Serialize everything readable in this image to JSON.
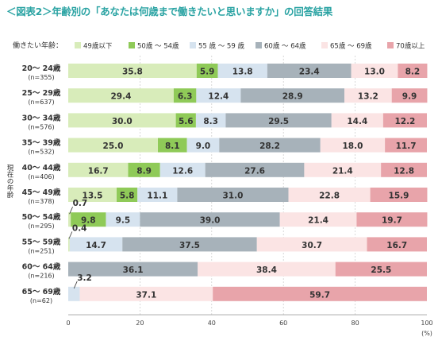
{
  "title": "＜図表2＞年齢別の「あなたは何歳まで働きたいと思いますか」の回答結果",
  "chart_data": {
    "type": "bar",
    "orientation": "horizontal",
    "stacked": true,
    "legend_title": "働きたい年齢：",
    "legend_position": "top",
    "ylabel": "現在の年齢",
    "xlabel": "(%)",
    "xlim": [
      0,
      100
    ],
    "xticks": [
      "0",
      "20",
      "40",
      "60",
      "80",
      "100"
    ],
    "grid": true,
    "categories": [
      {
        "label": "20〜 24歳",
        "n": "(n=355)"
      },
      {
        "label": "25〜 29歳",
        "n": "(n=637)"
      },
      {
        "label": "30〜 34歳",
        "n": "(n=576)"
      },
      {
        "label": "35〜 39歳",
        "n": "(n=532)"
      },
      {
        "label": "40〜 44歳",
        "n": "(n=406)"
      },
      {
        "label": "45〜 49歳",
        "n": "(n=378)"
      },
      {
        "label": "50〜 54歳",
        "n": "(n=295)"
      },
      {
        "label": "55〜 59歳",
        "n": "(n=251)"
      },
      {
        "label": "60〜 64歳",
        "n": "(n=216)"
      },
      {
        "label": "65〜 69歳",
        "n": "(n=62)"
      }
    ],
    "series": [
      {
        "name": "49歳以下",
        "color": "#d8ecba",
        "values": [
          35.8,
          29.4,
          30.0,
          25.0,
          16.7,
          13.5,
          0.7,
          0.4,
          null,
          null
        ]
      },
      {
        "name": "50歳 〜 54歳",
        "color": "#8fca58",
        "values": [
          5.9,
          6.3,
          5.6,
          8.1,
          8.9,
          5.8,
          9.8,
          null,
          null,
          null
        ]
      },
      {
        "name": "55 歳 〜 59 歳",
        "color": "#d6e3ef",
        "values": [
          13.8,
          12.4,
          8.3,
          9.0,
          12.6,
          11.1,
          9.5,
          14.7,
          null,
          3.2
        ]
      },
      {
        "name": "60歳 〜 64歳",
        "color": "#a7b2ba",
        "values": [
          23.4,
          28.9,
          29.5,
          28.2,
          27.6,
          31.0,
          39.0,
          37.5,
          36.1,
          null
        ]
      },
      {
        "name": "65歳 〜 69歳",
        "color": "#fbe4e4",
        "values": [
          13.0,
          13.2,
          14.4,
          18.0,
          21.4,
          22.8,
          21.4,
          30.7,
          38.4,
          37.1
        ]
      },
      {
        "name": "70歳以上",
        "color": "#e8a4aa",
        "values": [
          8.2,
          9.9,
          12.2,
          11.7,
          12.8,
          15.9,
          19.7,
          16.7,
          25.5,
          59.7
        ]
      }
    ]
  }
}
